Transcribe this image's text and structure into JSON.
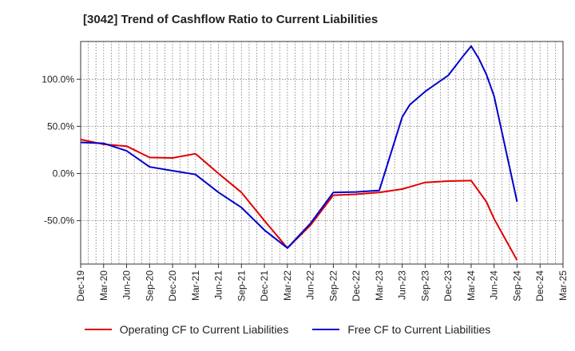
{
  "title": "[3042]  Trend of Cashflow Ratio to Current Liabilities",
  "chart_data": {
    "type": "line",
    "x_ticks": [
      "Dec-19",
      "Mar-20",
      "Jun-20",
      "Sep-20",
      "Dec-20",
      "Mar-21",
      "Jun-21",
      "Sep-21",
      "Dec-21",
      "Mar-22",
      "Jun-22",
      "Sep-22",
      "Dec-22",
      "Mar-23",
      "Jun-23",
      "Sep-23",
      "Dec-23",
      "Mar-24",
      "Jun-24",
      "Sep-24",
      "Dec-24",
      "Mar-25"
    ],
    "y_ticks": [
      {
        "value": 100,
        "label": "100.0%"
      },
      {
        "value": 50,
        "label": "50.0%"
      },
      {
        "value": 0,
        "label": "0.0%"
      },
      {
        "value": -50,
        "label": "-50.0%"
      }
    ],
    "ylim": [
      -96,
      140
    ],
    "grid": true,
    "legend_position": "bottom",
    "series": [
      {
        "name": "Operating CF to Current Liabilities",
        "color": "#e00000",
        "points": [
          [
            0,
            36
          ],
          [
            1,
            31
          ],
          [
            2,
            29
          ],
          [
            3,
            17
          ],
          [
            4,
            16.5
          ],
          [
            5,
            21
          ],
          [
            6,
            0
          ],
          [
            7,
            -20
          ],
          [
            8,
            -50
          ],
          [
            9,
            -79
          ],
          [
            10,
            -55
          ],
          [
            11,
            -23
          ],
          [
            12,
            -22
          ],
          [
            13,
            -20
          ],
          [
            14,
            -16.5
          ],
          [
            15,
            -9.5
          ],
          [
            16,
            -8
          ],
          [
            17,
            -7.5
          ],
          [
            17.667,
            -30
          ],
          [
            18,
            -48
          ],
          [
            19,
            -92
          ]
        ]
      },
      {
        "name": "Free CF to Current Liabilities",
        "color": "#0000cc",
        "points": [
          [
            0,
            33
          ],
          [
            1,
            32
          ],
          [
            2,
            24
          ],
          [
            3,
            7
          ],
          [
            4,
            3
          ],
          [
            5,
            -1
          ],
          [
            6,
            -20
          ],
          [
            7,
            -36
          ],
          [
            8,
            -60
          ],
          [
            9,
            -79
          ],
          [
            10,
            -53
          ],
          [
            11,
            -20
          ],
          [
            12,
            -19.5
          ],
          [
            13,
            -18
          ],
          [
            14,
            60
          ],
          [
            14.333,
            73
          ],
          [
            15,
            87
          ],
          [
            16,
            104
          ],
          [
            16.667,
            125
          ],
          [
            17,
            135
          ],
          [
            17.333,
            122
          ],
          [
            17.667,
            105
          ],
          [
            18,
            82
          ],
          [
            19,
            -30
          ]
        ]
      }
    ]
  }
}
